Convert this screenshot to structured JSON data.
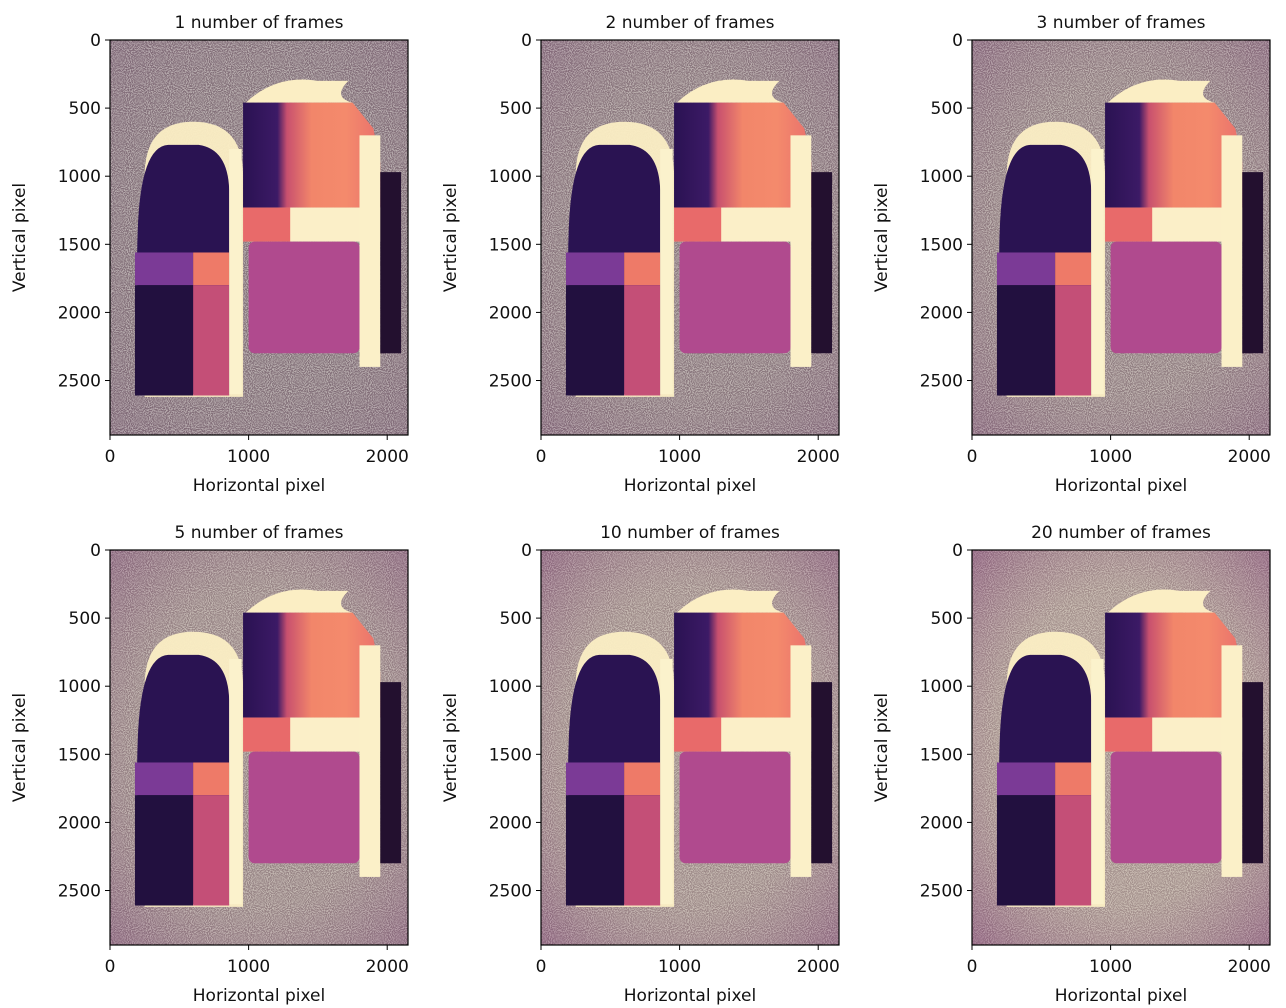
{
  "chart_data": [
    {
      "type": "image",
      "title": "1 number of frames",
      "xlabel": "Horizontal pixel",
      "ylabel": "Vertical pixel",
      "xlim": [
        0,
        2150
      ],
      "ylim": [
        2900,
        0
      ],
      "xticks": [
        0,
        1000,
        2000
      ],
      "yticks": [
        0,
        500,
        1000,
        1500,
        2000,
        2500
      ]
    },
    {
      "type": "image",
      "title": "2 number of frames",
      "xlabel": "Horizontal pixel",
      "ylabel": "Vertical pixel",
      "xlim": [
        0,
        2150
      ],
      "ylim": [
        2900,
        0
      ],
      "xticks": [
        0,
        1000,
        2000
      ],
      "yticks": [
        0,
        500,
        1000,
        1500,
        2000,
        2500
      ]
    },
    {
      "type": "image",
      "title": "3 number of frames",
      "xlabel": "Horizontal pixel",
      "ylabel": "Vertical pixel",
      "xlim": [
        0,
        2150
      ],
      "ylim": [
        2900,
        0
      ],
      "xticks": [
        0,
        1000,
        2000
      ],
      "yticks": [
        0,
        500,
        1000,
        1500,
        2000,
        2500
      ]
    },
    {
      "type": "image",
      "title": "5 number of frames",
      "xlabel": "Horizontal pixel",
      "ylabel": "Vertical pixel",
      "xlim": [
        0,
        2150
      ],
      "ylim": [
        2900,
        0
      ],
      "xticks": [
        0,
        1000,
        2000
      ],
      "yticks": [
        0,
        500,
        1000,
        1500,
        2000,
        2500
      ]
    },
    {
      "type": "image",
      "title": "10 number of frames",
      "xlabel": "Horizontal pixel",
      "ylabel": "Vertical pixel",
      "xlim": [
        0,
        2150
      ],
      "ylim": [
        2900,
        0
      ],
      "xticks": [
        0,
        1000,
        2000
      ],
      "yticks": [
        0,
        500,
        1000,
        1500,
        2000,
        2500
      ]
    },
    {
      "type": "image",
      "title": "20 number of frames",
      "xlabel": "Horizontal pixel",
      "ylabel": "Vertical pixel",
      "xlim": [
        0,
        2150
      ],
      "ylim": [
        2900,
        0
      ],
      "xticks": [
        0,
        1000,
        2000
      ],
      "yticks": [
        0,
        500,
        1000,
        1500,
        2000,
        2500
      ]
    }
  ]
}
